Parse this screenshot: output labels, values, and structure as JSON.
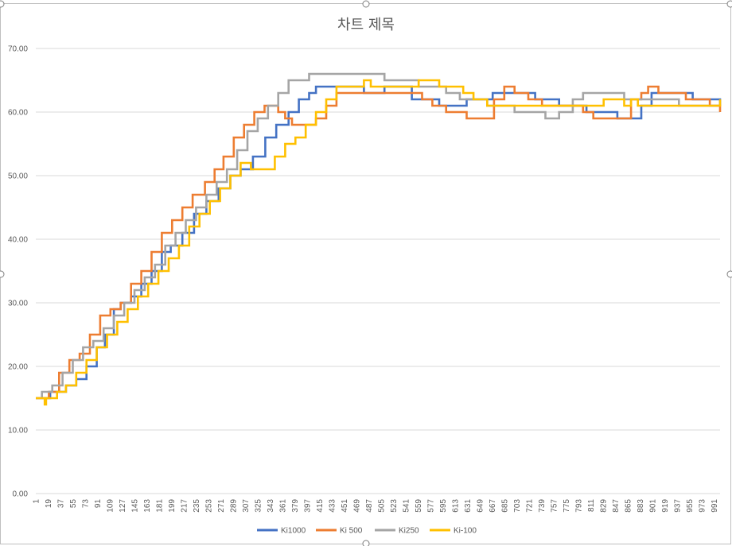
{
  "chart_data": {
    "type": "line",
    "title": "차트 제목",
    "xlabel": "",
    "ylabel": "",
    "ylim": [
      0,
      70
    ],
    "yticks": [
      "0.00",
      "10.00",
      "20.00",
      "30.00",
      "40.00",
      "50.00",
      "60.00",
      "70.00"
    ],
    "xlim": [
      1,
      1000
    ],
    "xticks": [
      1,
      19,
      37,
      55,
      73,
      91,
      109,
      127,
      145,
      163,
      181,
      199,
      217,
      235,
      253,
      271,
      289,
      307,
      325,
      343,
      361,
      379,
      397,
      415,
      433,
      451,
      469,
      487,
      505,
      523,
      541,
      559,
      577,
      595,
      613,
      631,
      649,
      667,
      685,
      703,
      721,
      739,
      757,
      775,
      793,
      811,
      829,
      847,
      865,
      883,
      901,
      919,
      937,
      955,
      973,
      991
    ],
    "grid": true,
    "legend_position": "bottom",
    "series": [
      {
        "name": "Ki1000",
        "color": "#4472C4",
        "points": [
          [
            1,
            15
          ],
          [
            20,
            15
          ],
          [
            22,
            16
          ],
          [
            40,
            16
          ],
          [
            45,
            17
          ],
          [
            60,
            18
          ],
          [
            75,
            20
          ],
          [
            90,
            23
          ],
          [
            102,
            25
          ],
          [
            115,
            29
          ],
          [
            125,
            30
          ],
          [
            140,
            31
          ],
          [
            155,
            33
          ],
          [
            170,
            35
          ],
          [
            185,
            38
          ],
          [
            198,
            39
          ],
          [
            215,
            41
          ],
          [
            232,
            44
          ],
          [
            250,
            46
          ],
          [
            268,
            48
          ],
          [
            285,
            50
          ],
          [
            300,
            51
          ],
          [
            318,
            53
          ],
          [
            336,
            56
          ],
          [
            352,
            58
          ],
          [
            370,
            60
          ],
          [
            385,
            62
          ],
          [
            400,
            63
          ],
          [
            410,
            64
          ],
          [
            430,
            64
          ],
          [
            450,
            64
          ],
          [
            470,
            64
          ],
          [
            480,
            63
          ],
          [
            495,
            63
          ],
          [
            510,
            64
          ],
          [
            528,
            64
          ],
          [
            550,
            62
          ],
          [
            572,
            62
          ],
          [
            590,
            61
          ],
          [
            615,
            61
          ],
          [
            630,
            62
          ],
          [
            650,
            62
          ],
          [
            668,
            63
          ],
          [
            690,
            63
          ],
          [
            712,
            63
          ],
          [
            730,
            62
          ],
          [
            752,
            62
          ],
          [
            765,
            61
          ],
          [
            785,
            61
          ],
          [
            805,
            60
          ],
          [
            830,
            60
          ],
          [
            850,
            59
          ],
          [
            872,
            59
          ],
          [
            885,
            61
          ],
          [
            900,
            63
          ],
          [
            920,
            63
          ],
          [
            940,
            63
          ],
          [
            960,
            62
          ],
          [
            975,
            62
          ],
          [
            992,
            62
          ],
          [
            1000,
            61
          ]
        ]
      },
      {
        "name": "Ki 500",
        "color": "#ED7D31",
        "points": [
          [
            1,
            15
          ],
          [
            15,
            15
          ],
          [
            20,
            16
          ],
          [
            35,
            19
          ],
          [
            50,
            21
          ],
          [
            65,
            22
          ],
          [
            80,
            25
          ],
          [
            95,
            28
          ],
          [
            110,
            29
          ],
          [
            125,
            30
          ],
          [
            140,
            33
          ],
          [
            155,
            35
          ],
          [
            170,
            38
          ],
          [
            185,
            41
          ],
          [
            200,
            43
          ],
          [
            215,
            45
          ],
          [
            230,
            47
          ],
          [
            248,
            49
          ],
          [
            262,
            51
          ],
          [
            275,
            53
          ],
          [
            290,
            56
          ],
          [
            305,
            58
          ],
          [
            320,
            60
          ],
          [
            335,
            61
          ],
          [
            345,
            61
          ],
          [
            355,
            60
          ],
          [
            365,
            59
          ],
          [
            375,
            58
          ],
          [
            390,
            58
          ],
          [
            410,
            59
          ],
          [
            425,
            61
          ],
          [
            440,
            63
          ],
          [
            470,
            63
          ],
          [
            500,
            63
          ],
          [
            530,
            63
          ],
          [
            550,
            63
          ],
          [
            565,
            62
          ],
          [
            580,
            61
          ],
          [
            600,
            60
          ],
          [
            630,
            59
          ],
          [
            655,
            59
          ],
          [
            670,
            62
          ],
          [
            685,
            64
          ],
          [
            700,
            63
          ],
          [
            720,
            62
          ],
          [
            740,
            61
          ],
          [
            760,
            61
          ],
          [
            780,
            61
          ],
          [
            800,
            60
          ],
          [
            815,
            59
          ],
          [
            835,
            59
          ],
          [
            850,
            59
          ],
          [
            870,
            62
          ],
          [
            885,
            63
          ],
          [
            895,
            64
          ],
          [
            910,
            63
          ],
          [
            930,
            63
          ],
          [
            950,
            62
          ],
          [
            970,
            62
          ],
          [
            985,
            61
          ],
          [
            995,
            61
          ],
          [
            1000,
            60
          ]
        ]
      },
      {
        "name": "Ki250",
        "color": "#A5A5A5",
        "points": [
          [
            1,
            15
          ],
          [
            10,
            16
          ],
          [
            25,
            17
          ],
          [
            40,
            19
          ],
          [
            55,
            21
          ],
          [
            70,
            23
          ],
          [
            85,
            24
          ],
          [
            100,
            26
          ],
          [
            115,
            28
          ],
          [
            130,
            30
          ],
          [
            145,
            32
          ],
          [
            160,
            34
          ],
          [
            175,
            36
          ],
          [
            190,
            39
          ],
          [
            205,
            41
          ],
          [
            220,
            43
          ],
          [
            235,
            45
          ],
          [
            250,
            47
          ],
          [
            265,
            49
          ],
          [
            280,
            51
          ],
          [
            295,
            54
          ],
          [
            310,
            57
          ],
          [
            325,
            59
          ],
          [
            340,
            61
          ],
          [
            355,
            63
          ],
          [
            370,
            65
          ],
          [
            385,
            65
          ],
          [
            400,
            66
          ],
          [
            430,
            66
          ],
          [
            460,
            66
          ],
          [
            490,
            66
          ],
          [
            510,
            65
          ],
          [
            530,
            65
          ],
          [
            550,
            65
          ],
          [
            560,
            64
          ],
          [
            580,
            64
          ],
          [
            600,
            63
          ],
          [
            620,
            62
          ],
          [
            640,
            62
          ],
          [
            660,
            61
          ],
          [
            680,
            61
          ],
          [
            700,
            60
          ],
          [
            720,
            60
          ],
          [
            745,
            59
          ],
          [
            765,
            60
          ],
          [
            785,
            62
          ],
          [
            800,
            63
          ],
          [
            820,
            63
          ],
          [
            840,
            63
          ],
          [
            860,
            62
          ],
          [
            880,
            62
          ],
          [
            900,
            62
          ],
          [
            920,
            62
          ],
          [
            940,
            61
          ],
          [
            960,
            61
          ],
          [
            980,
            61
          ],
          [
            1000,
            61
          ]
        ]
      },
      {
        "name": "Ki-100",
        "color": "#FFC000",
        "points": [
          [
            1,
            15
          ],
          [
            12,
            15
          ],
          [
            14,
            14
          ],
          [
            16,
            15
          ],
          [
            30,
            15
          ],
          [
            32,
            16
          ],
          [
            45,
            17
          ],
          [
            60,
            19
          ],
          [
            75,
            21
          ],
          [
            90,
            23
          ],
          [
            105,
            25
          ],
          [
            120,
            27
          ],
          [
            135,
            29
          ],
          [
            150,
            31
          ],
          [
            165,
            33
          ],
          [
            180,
            35
          ],
          [
            195,
            37
          ],
          [
            210,
            39
          ],
          [
            225,
            42
          ],
          [
            240,
            44
          ],
          [
            255,
            46
          ],
          [
            270,
            48
          ],
          [
            285,
            50
          ],
          [
            300,
            52
          ],
          [
            315,
            51
          ],
          [
            335,
            51
          ],
          [
            350,
            53
          ],
          [
            365,
            55
          ],
          [
            380,
            56
          ],
          [
            395,
            58
          ],
          [
            410,
            60
          ],
          [
            425,
            62
          ],
          [
            440,
            64
          ],
          [
            460,
            64
          ],
          [
            480,
            65
          ],
          [
            490,
            64
          ],
          [
            510,
            64
          ],
          [
            540,
            64
          ],
          [
            560,
            65
          ],
          [
            575,
            65
          ],
          [
            590,
            64
          ],
          [
            610,
            64
          ],
          [
            625,
            63
          ],
          [
            640,
            62
          ],
          [
            660,
            61
          ],
          [
            680,
            61
          ],
          [
            700,
            61
          ],
          [
            730,
            61
          ],
          [
            760,
            61
          ],
          [
            790,
            61
          ],
          [
            810,
            61
          ],
          [
            830,
            62
          ],
          [
            850,
            62
          ],
          [
            860,
            61
          ],
          [
            870,
            62
          ],
          [
            880,
            61
          ],
          [
            900,
            61
          ],
          [
            930,
            61
          ],
          [
            960,
            61
          ],
          [
            990,
            61
          ],
          [
            1000,
            62
          ]
        ]
      }
    ]
  }
}
